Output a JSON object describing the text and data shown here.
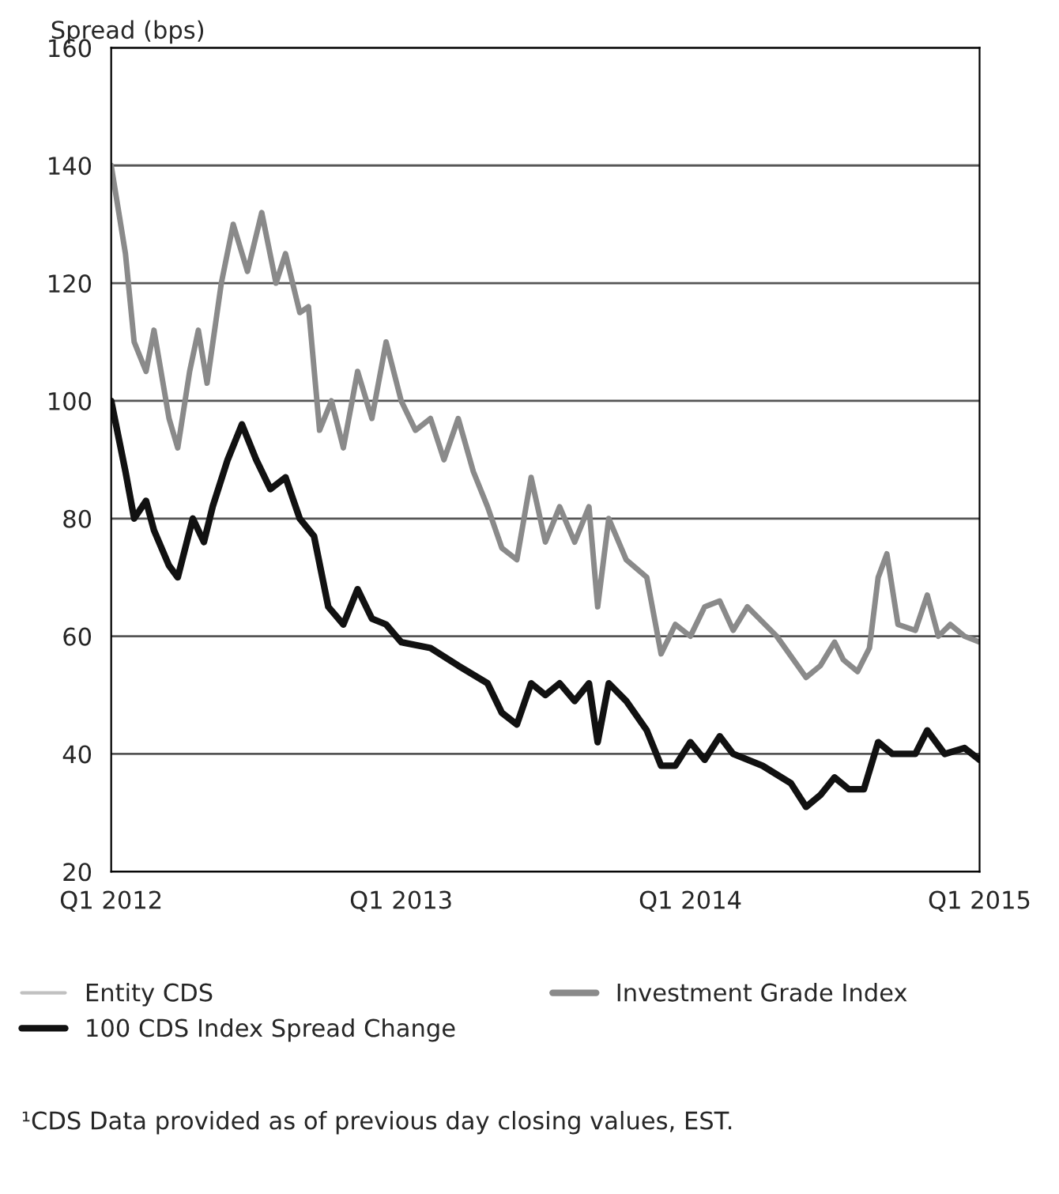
{
  "chart_data": {
    "type": "line",
    "ylabel": "Spread (bps)",
    "xlim": [
      "2012-01-01",
      "2015-01-01"
    ],
    "xticks": [
      {
        "value": "2012-01-01",
        "label": "Q1 2012"
      },
      {
        "value": "2013-01-01",
        "label": "Q1 2013"
      },
      {
        "value": "2014-01-01",
        "label": "Q1 2014"
      },
      {
        "value": "2015-01-01",
        "label": "Q1 2015"
      }
    ],
    "ylim": [
      20,
      160
    ],
    "yticks": [
      20,
      40,
      60,
      80,
      100,
      120,
      140,
      160
    ],
    "grid": "y",
    "legend": "bottom",
    "line_style": "solid",
    "series": [
      {
        "name": "Investment Grade Index",
        "color": "#8a8a8a",
        "x": [
          "2012-01-01",
          "2012-01-19",
          "2012-01-30",
          "2012-02-14",
          "2012-02-24",
          "2012-03-14",
          "2012-03-25",
          "2012-04-09",
          "2012-04-20",
          "2012-05-01",
          "2012-05-19",
          "2012-06-03",
          "2012-06-21",
          "2012-07-09",
          "2012-07-27",
          "2012-08-08",
          "2012-08-26",
          "2012-09-06",
          "2012-09-20",
          "2012-10-05",
          "2012-10-20",
          "2012-11-07",
          "2012-11-25",
          "2012-12-13",
          "2013-01-01",
          "2013-01-19",
          "2013-02-07",
          "2013-02-24",
          "2013-03-14",
          "2013-04-02",
          "2013-04-20",
          "2013-05-08",
          "2013-05-27",
          "2013-06-14",
          "2013-07-02",
          "2013-07-20",
          "2013-08-08",
          "2013-08-26",
          "2013-09-06",
          "2013-09-20",
          "2013-10-12",
          "2013-11-07",
          "2013-11-25",
          "2013-12-13",
          "2014-01-01",
          "2014-01-19",
          "2014-02-07",
          "2014-02-24",
          "2014-03-14",
          "2014-04-20",
          "2014-05-27",
          "2014-06-14",
          "2014-07-02",
          "2014-07-13",
          "2014-07-31",
          "2014-08-15",
          "2014-08-26",
          "2014-09-06",
          "2014-09-20",
          "2014-10-12",
          "2014-10-27",
          "2014-11-10",
          "2014-11-25",
          "2014-12-13",
          "2015-01-01"
        ],
        "values": [
          140,
          125,
          110,
          105,
          112,
          97,
          92,
          105,
          112,
          103,
          120,
          130,
          122,
          132,
          120,
          125,
          115,
          116,
          95,
          100,
          92,
          105,
          97,
          110,
          100,
          95,
          97,
          90,
          97,
          88,
          82,
          75,
          73,
          87,
          76,
          82,
          76,
          82,
          65,
          80,
          73,
          70,
          57,
          62,
          60,
          65,
          66,
          61,
          65,
          60,
          53,
          55,
          59,
          56,
          54,
          58,
          70,
          74,
          62,
          61,
          67,
          60,
          62,
          60,
          59
        ]
      },
      {
        "name": "100 CDS Index Spread Change",
        "color": "#111111",
        "x": [
          "2012-01-01",
          "2012-01-19",
          "2012-01-30",
          "2012-02-14",
          "2012-02-24",
          "2012-03-14",
          "2012-03-25",
          "2012-04-13",
          "2012-04-27",
          "2012-05-08",
          "2012-05-27",
          "2012-06-14",
          "2012-07-02",
          "2012-07-20",
          "2012-08-08",
          "2012-08-26",
          "2012-09-13",
          "2012-10-01",
          "2012-10-20",
          "2012-11-07",
          "2012-11-25",
          "2012-12-13",
          "2013-01-01",
          "2013-02-07",
          "2013-03-14",
          "2013-04-20",
          "2013-05-08",
          "2013-05-27",
          "2013-06-14",
          "2013-07-02",
          "2013-07-20",
          "2013-08-08",
          "2013-08-26",
          "2013-09-06",
          "2013-09-20",
          "2013-10-12",
          "2013-11-07",
          "2013-11-25",
          "2013-12-13",
          "2014-01-01",
          "2014-01-19",
          "2014-02-07",
          "2014-02-24",
          "2014-04-02",
          "2014-05-08",
          "2014-05-27",
          "2014-06-14",
          "2014-07-02",
          "2014-07-20",
          "2014-08-08",
          "2014-08-26",
          "2014-09-13",
          "2014-10-12",
          "2014-10-27",
          "2014-11-18",
          "2014-12-13",
          "2015-01-01"
        ],
        "values": [
          100,
          88,
          80,
          83,
          78,
          72,
          70,
          80,
          76,
          82,
          90,
          96,
          90,
          85,
          87,
          80,
          77,
          65,
          62,
          68,
          63,
          62,
          59,
          58,
          55,
          52,
          47,
          45,
          52,
          50,
          52,
          49,
          52,
          42,
          52,
          49,
          44,
          38,
          38,
          42,
          39,
          43,
          40,
          38,
          35,
          31,
          33,
          36,
          34,
          34,
          42,
          40,
          40,
          44,
          40,
          41,
          39
        ]
      }
    ],
    "annotations": [
      "Entity CDS",
      "¹CDS Data provided as of previous day closing values, EST."
    ]
  }
}
